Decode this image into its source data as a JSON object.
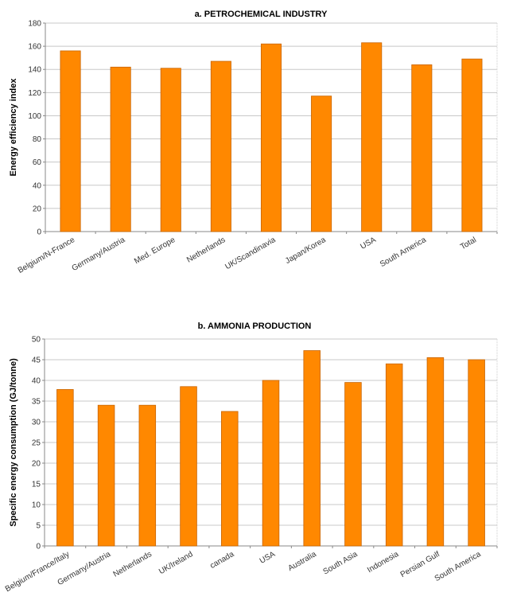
{
  "colors": {
    "bar": "#ff8800",
    "bar_edge": "#c86400",
    "grid": "#c8c8c8"
  },
  "chart_data": [
    {
      "type": "bar",
      "title": "a.  PETROCHEMICAL  INDUSTRY",
      "xlabel": "",
      "ylabel": "Energy  efficiency  index",
      "ylim": [
        0,
        180
      ],
      "yticks": [
        0,
        20,
        40,
        60,
        80,
        100,
        120,
        140,
        160,
        180
      ],
      "grid": true,
      "categories": [
        "Belgium/N-France",
        "Germany/Austria",
        "Med. Europe",
        "Netherlands",
        "UK/Scandinavia",
        "Japan/Korea",
        "USA",
        "South America",
        "Total"
      ],
      "values": [
        156,
        142,
        141,
        147,
        162,
        117,
        163,
        144,
        149
      ]
    },
    {
      "type": "bar",
      "title": "b.  AMMONIA  PRODUCTION",
      "xlabel": "",
      "ylabel": "Specific  energy  consumption  (GJ/tonne)",
      "ylim": [
        0,
        50
      ],
      "yticks": [
        0,
        5,
        10,
        15,
        20,
        25,
        30,
        35,
        40,
        45,
        50
      ],
      "grid": true,
      "categories": [
        "Belgium/France/Italy",
        "Germany/Austria",
        "Netherlands",
        "UK/Ireland",
        "canada",
        "USA",
        "Australia",
        "South Asia",
        "Indonesia",
        "Persian Gulf",
        "South America"
      ],
      "values": [
        37.8,
        34,
        34,
        38.5,
        32.5,
        40,
        47.2,
        39.5,
        44,
        45.5,
        45
      ]
    }
  ]
}
